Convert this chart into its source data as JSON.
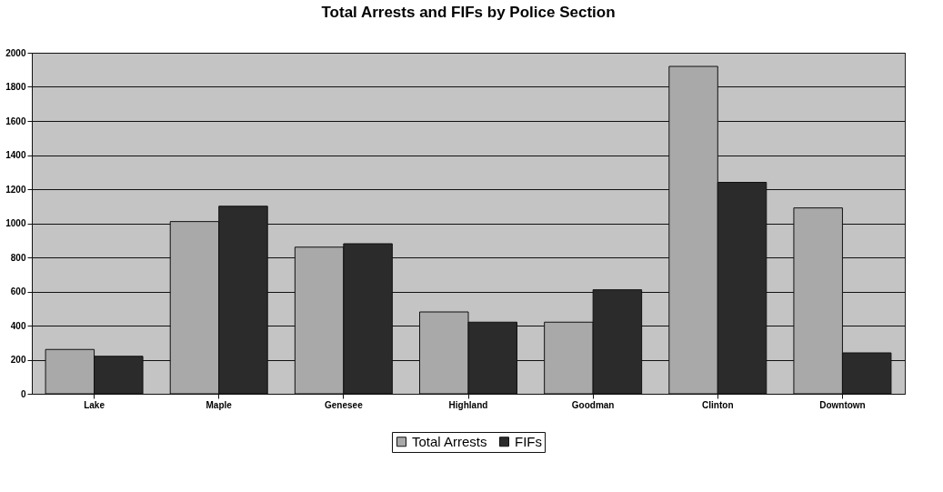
{
  "chart_data": {
    "type": "bar",
    "title": "Total Arrests and FIFs by Police Section",
    "categories": [
      "Lake",
      "Maple",
      "Genesee",
      "Highland",
      "Goodman",
      "Clinton",
      "Downtown"
    ],
    "series": [
      {
        "name": "Total Arrests",
        "color": "#a9a9a9",
        "values": [
          260,
          1010,
          860,
          480,
          420,
          1920,
          1090
        ]
      },
      {
        "name": "FIFs",
        "color": "#2b2b2b",
        "values": [
          220,
          1100,
          880,
          420,
          610,
          1240,
          240
        ]
      }
    ],
    "ylim": [
      0,
      2000
    ],
    "yticks": [
      0,
      200,
      400,
      600,
      800,
      1000,
      1200,
      1400,
      1600,
      1800,
      2000
    ],
    "grid": "y",
    "legend": "bottom"
  }
}
